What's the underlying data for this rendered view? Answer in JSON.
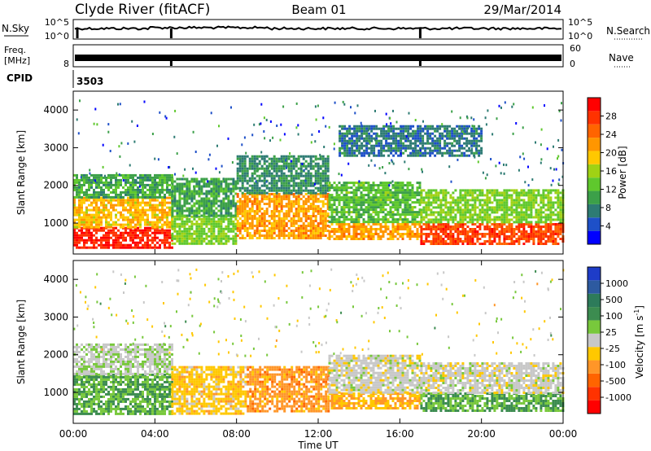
{
  "header": {
    "station": "Clyde River (fitACF)",
    "beam": "Beam 01",
    "date": "29/Mar/2014"
  },
  "noise_panel": {
    "left_label": "N.Sky",
    "right_label": "N.Search",
    "left_ticks": [
      "10^5",
      "10^0"
    ],
    "right_ticks": [
      "10^5",
      "10^0"
    ]
  },
  "freq_panel": {
    "left_label_1": "Freq.",
    "left_label_2": "[MHz]",
    "left_ticks": [
      "8"
    ],
    "right_label": "Nave",
    "right_ticks": [
      "60",
      "0"
    ]
  },
  "cpid": {
    "label": "CPID",
    "value": "3503"
  },
  "power_panel": {
    "ylabel": "Slant Range [km]",
    "y_ticks": [
      "4000",
      "3000",
      "2000",
      "1000"
    ],
    "colorbar_label": "Power [dB]",
    "colorbar_ticks": [
      "28",
      "24",
      "20",
      "16",
      "12",
      "8",
      "4"
    ],
    "colors": [
      "#0000ff",
      "#1e50c8",
      "#2d7b73",
      "#3ca049",
      "#5fc82d",
      "#a0d214",
      "#ffc800",
      "#ff9600",
      "#ff6400",
      "#ff3200",
      "#ff0000"
    ]
  },
  "velocity_panel": {
    "ylabel": "Slant Range [km]",
    "y_ticks": [
      "4000",
      "3000",
      "2000",
      "1000"
    ],
    "colorbar_label": "Velocity [m s^-1]",
    "colorbar_ticks": [
      "1000",
      "500",
      "100",
      "25",
      "-25",
      "-100",
      "-500",
      "-1000"
    ],
    "colors": [
      "#1e3cc8",
      "#2d5aa0",
      "#2d7b5a",
      "#3c8c50",
      "#78c83c",
      "#c8c8c8",
      "#ffc800",
      "#ff9628",
      "#ff6400",
      "#ff3200",
      "#ff0000"
    ]
  },
  "x_axis": {
    "label": "Time UT",
    "ticks": [
      "00:00",
      "04:00",
      "08:00",
      "12:00",
      "16:00",
      "20:00",
      "00:00"
    ]
  },
  "chart_data": [
    {
      "type": "heatmap",
      "name": "power",
      "xlabel": "Time UT",
      "ylabel": "Slant Range [km]",
      "xlim": [
        0,
        24
      ],
      "ylim": [
        180,
        4500
      ],
      "colorbar_range_db": [
        0,
        32
      ],
      "description_cells": "time (hours UT), range (km), power (dB)",
      "regions": [
        {
          "t0": 0.0,
          "t1": 4.8,
          "r0": 350,
          "r1": 900,
          "level": 30
        },
        {
          "t0": 0.0,
          "t1": 4.8,
          "r0": 900,
          "r1": 1700,
          "level": 20
        },
        {
          "t0": 0.0,
          "t1": 4.8,
          "r0": 1700,
          "r1": 2300,
          "level": 10
        },
        {
          "t0": 4.8,
          "t1": 8.0,
          "r0": 450,
          "r1": 1200,
          "level": 14
        },
        {
          "t0": 4.8,
          "t1": 8.0,
          "r0": 1200,
          "r1": 2200,
          "level": 10
        },
        {
          "t0": 8.0,
          "t1": 12.5,
          "r0": 600,
          "r1": 1800,
          "level": 22
        },
        {
          "t0": 8.0,
          "t1": 12.5,
          "r0": 1800,
          "r1": 2800,
          "level": 8
        },
        {
          "t0": 12.5,
          "t1": 17.0,
          "r0": 600,
          "r1": 1000,
          "level": 22
        },
        {
          "t0": 12.5,
          "t1": 17.0,
          "r0": 1000,
          "r1": 2100,
          "level": 12
        },
        {
          "t0": 17.0,
          "t1": 24.0,
          "r0": 450,
          "r1": 1000,
          "level": 28
        },
        {
          "t0": 17.0,
          "t1": 24.0,
          "r0": 1000,
          "r1": 1900,
          "level": 14
        },
        {
          "t0": 13.0,
          "t1": 20.0,
          "r0": 2800,
          "r1": 3600,
          "level": 6
        }
      ]
    },
    {
      "type": "heatmap",
      "name": "velocity",
      "xlabel": "Time UT",
      "ylabel": "Slant Range [km]",
      "xlim": [
        0,
        24
      ],
      "ylim": [
        180,
        4500
      ],
      "colorbar_range_ms": [
        -1000,
        1000
      ],
      "description_cells": "time (hours UT), range (km), velocity (m/s)",
      "regions": [
        {
          "t0": 0.0,
          "t1": 4.8,
          "r0": 400,
          "r1": 1500,
          "level": 300
        },
        {
          "t0": 0.0,
          "t1": 4.8,
          "r0": 1500,
          "r1": 2300,
          "level": 60
        },
        {
          "t0": 4.8,
          "t1": 8.5,
          "r0": 450,
          "r1": 1700,
          "level": -200
        },
        {
          "t0": 8.5,
          "t1": 12.5,
          "r0": 500,
          "r1": 1700,
          "level": -400
        },
        {
          "t0": 12.5,
          "t1": 17.0,
          "r0": 600,
          "r1": 1000,
          "level": -300
        },
        {
          "t0": 12.5,
          "t1": 17.0,
          "r0": 1000,
          "r1": 2000,
          "level": -10
        },
        {
          "t0": 17.0,
          "t1": 24.0,
          "r0": 500,
          "r1": 1000,
          "level": 300
        },
        {
          "t0": 17.0,
          "t1": 24.0,
          "r0": 1000,
          "r1": 1800,
          "level": -10
        }
      ]
    }
  ]
}
